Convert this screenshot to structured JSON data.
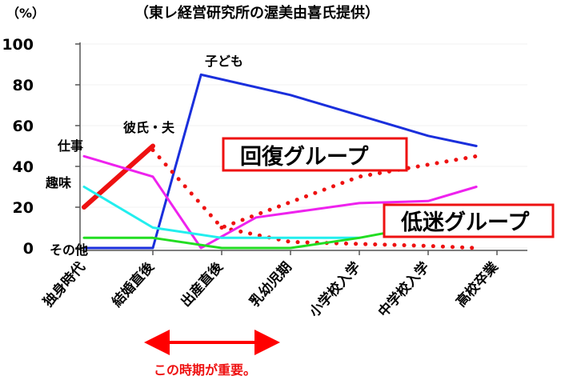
{
  "chart_data": {
    "type": "line",
    "title": "（東レ経営研究所の渥美由喜氏提供）",
    "y_unit": "（%）",
    "ylim": [
      0,
      100
    ],
    "yticks": [
      0,
      20,
      40,
      60,
      80,
      100
    ],
    "categories": [
      "独身時代",
      "結婚直後",
      "出産直後",
      "乳幼児期",
      "小学校入学",
      "中学校入学",
      "高校卒業"
    ],
    "series": [
      {
        "name": "子ども",
        "color": "#1a2fdc",
        "style": "solid",
        "points": [
          [
            0,
            0
          ],
          [
            1,
            0
          ],
          [
            1.7,
            85
          ],
          [
            3,
            75
          ],
          [
            5,
            55
          ],
          [
            5.7,
            50
          ]
        ]
      },
      {
        "name": "彼氏・夫",
        "color": "#ee1111",
        "style": "solid-thick",
        "points": [
          [
            0,
            20
          ],
          [
            1,
            50
          ]
        ]
      },
      {
        "name": "彼氏・夫",
        "color": "#ee1111",
        "style": "dotted",
        "points": [
          [
            1,
            48
          ],
          [
            2,
            10
          ],
          [
            4,
            35
          ],
          [
            5.7,
            45
          ]
        ]
      },
      {
        "name": "",
        "color": "#ee1111",
        "style": "dotted",
        "points": [
          [
            2,
            10
          ],
          [
            3,
            3
          ],
          [
            5,
            1
          ],
          [
            5.7,
            0
          ]
        ]
      },
      {
        "name": "仕事",
        "color": "#ee22ee",
        "style": "solid",
        "points": [
          [
            0,
            45
          ],
          [
            1,
            35
          ],
          [
            1.7,
            0
          ],
          [
            2.5,
            15
          ],
          [
            4,
            22
          ],
          [
            5,
            23
          ],
          [
            5.7,
            30
          ]
        ]
      },
      {
        "name": "趣味",
        "color": "#22eeee",
        "style": "solid",
        "points": [
          [
            0,
            30
          ],
          [
            1,
            10
          ],
          [
            2,
            5
          ],
          [
            3,
            5
          ],
          [
            4,
            5
          ]
        ]
      },
      {
        "name": "その他",
        "color": "#22dd22",
        "style": "solid",
        "points": [
          [
            0,
            5
          ],
          [
            1,
            5
          ],
          [
            2,
            0
          ],
          [
            3,
            0
          ],
          [
            4,
            5
          ],
          [
            4.8,
            10
          ]
        ]
      }
    ],
    "annotations": {
      "recovery_group": "回復グループ",
      "low_group": "低迷グループ",
      "important_note": "この時期が重要。"
    }
  }
}
